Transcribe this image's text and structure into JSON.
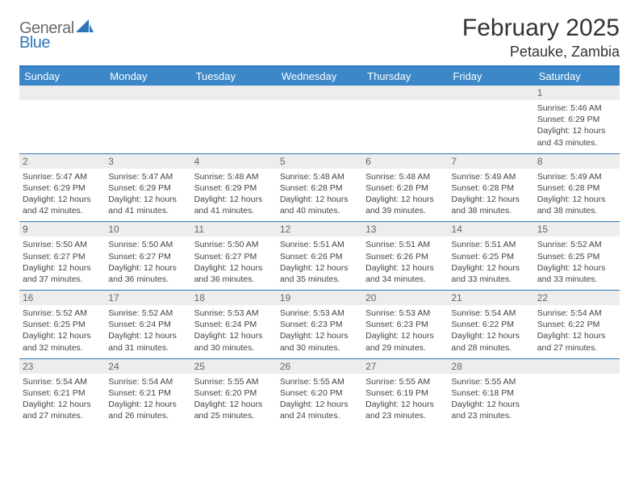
{
  "brand": {
    "a": "General",
    "b": "Blue"
  },
  "title": "February 2025",
  "location": "Petauke, Zambia",
  "colors": {
    "accent": "#2f76b8",
    "header_bg": "#3b87c8",
    "daynum_bg": "#ededed",
    "text_dark": "#333333",
    "text_muted": "#666666",
    "text_body": "#444444"
  },
  "dow": [
    "Sunday",
    "Monday",
    "Tuesday",
    "Wednesday",
    "Thursday",
    "Friday",
    "Saturday"
  ],
  "weeks": [
    [
      {
        "num": "",
        "lines": []
      },
      {
        "num": "",
        "lines": []
      },
      {
        "num": "",
        "lines": []
      },
      {
        "num": "",
        "lines": []
      },
      {
        "num": "",
        "lines": []
      },
      {
        "num": "",
        "lines": []
      },
      {
        "num": "1",
        "lines": [
          "Sunrise: 5:46 AM",
          "Sunset: 6:29 PM",
          "Daylight: 12 hours",
          "and 43 minutes."
        ]
      }
    ],
    [
      {
        "num": "2",
        "lines": [
          "Sunrise: 5:47 AM",
          "Sunset: 6:29 PM",
          "Daylight: 12 hours",
          "and 42 minutes."
        ]
      },
      {
        "num": "3",
        "lines": [
          "Sunrise: 5:47 AM",
          "Sunset: 6:29 PM",
          "Daylight: 12 hours",
          "and 41 minutes."
        ]
      },
      {
        "num": "4",
        "lines": [
          "Sunrise: 5:48 AM",
          "Sunset: 6:29 PM",
          "Daylight: 12 hours",
          "and 41 minutes."
        ]
      },
      {
        "num": "5",
        "lines": [
          "Sunrise: 5:48 AM",
          "Sunset: 6:28 PM",
          "Daylight: 12 hours",
          "and 40 minutes."
        ]
      },
      {
        "num": "6",
        "lines": [
          "Sunrise: 5:48 AM",
          "Sunset: 6:28 PM",
          "Daylight: 12 hours",
          "and 39 minutes."
        ]
      },
      {
        "num": "7",
        "lines": [
          "Sunrise: 5:49 AM",
          "Sunset: 6:28 PM",
          "Daylight: 12 hours",
          "and 38 minutes."
        ]
      },
      {
        "num": "8",
        "lines": [
          "Sunrise: 5:49 AM",
          "Sunset: 6:28 PM",
          "Daylight: 12 hours",
          "and 38 minutes."
        ]
      }
    ],
    [
      {
        "num": "9",
        "lines": [
          "Sunrise: 5:50 AM",
          "Sunset: 6:27 PM",
          "Daylight: 12 hours",
          "and 37 minutes."
        ]
      },
      {
        "num": "10",
        "lines": [
          "Sunrise: 5:50 AM",
          "Sunset: 6:27 PM",
          "Daylight: 12 hours",
          "and 36 minutes."
        ]
      },
      {
        "num": "11",
        "lines": [
          "Sunrise: 5:50 AM",
          "Sunset: 6:27 PM",
          "Daylight: 12 hours",
          "and 36 minutes."
        ]
      },
      {
        "num": "12",
        "lines": [
          "Sunrise: 5:51 AM",
          "Sunset: 6:26 PM",
          "Daylight: 12 hours",
          "and 35 minutes."
        ]
      },
      {
        "num": "13",
        "lines": [
          "Sunrise: 5:51 AM",
          "Sunset: 6:26 PM",
          "Daylight: 12 hours",
          "and 34 minutes."
        ]
      },
      {
        "num": "14",
        "lines": [
          "Sunrise: 5:51 AM",
          "Sunset: 6:25 PM",
          "Daylight: 12 hours",
          "and 33 minutes."
        ]
      },
      {
        "num": "15",
        "lines": [
          "Sunrise: 5:52 AM",
          "Sunset: 6:25 PM",
          "Daylight: 12 hours",
          "and 33 minutes."
        ]
      }
    ],
    [
      {
        "num": "16",
        "lines": [
          "Sunrise: 5:52 AM",
          "Sunset: 6:25 PM",
          "Daylight: 12 hours",
          "and 32 minutes."
        ]
      },
      {
        "num": "17",
        "lines": [
          "Sunrise: 5:52 AM",
          "Sunset: 6:24 PM",
          "Daylight: 12 hours",
          "and 31 minutes."
        ]
      },
      {
        "num": "18",
        "lines": [
          "Sunrise: 5:53 AM",
          "Sunset: 6:24 PM",
          "Daylight: 12 hours",
          "and 30 minutes."
        ]
      },
      {
        "num": "19",
        "lines": [
          "Sunrise: 5:53 AM",
          "Sunset: 6:23 PM",
          "Daylight: 12 hours",
          "and 30 minutes."
        ]
      },
      {
        "num": "20",
        "lines": [
          "Sunrise: 5:53 AM",
          "Sunset: 6:23 PM",
          "Daylight: 12 hours",
          "and 29 minutes."
        ]
      },
      {
        "num": "21",
        "lines": [
          "Sunrise: 5:54 AM",
          "Sunset: 6:22 PM",
          "Daylight: 12 hours",
          "and 28 minutes."
        ]
      },
      {
        "num": "22",
        "lines": [
          "Sunrise: 5:54 AM",
          "Sunset: 6:22 PM",
          "Daylight: 12 hours",
          "and 27 minutes."
        ]
      }
    ],
    [
      {
        "num": "23",
        "lines": [
          "Sunrise: 5:54 AM",
          "Sunset: 6:21 PM",
          "Daylight: 12 hours",
          "and 27 minutes."
        ]
      },
      {
        "num": "24",
        "lines": [
          "Sunrise: 5:54 AM",
          "Sunset: 6:21 PM",
          "Daylight: 12 hours",
          "and 26 minutes."
        ]
      },
      {
        "num": "25",
        "lines": [
          "Sunrise: 5:55 AM",
          "Sunset: 6:20 PM",
          "Daylight: 12 hours",
          "and 25 minutes."
        ]
      },
      {
        "num": "26",
        "lines": [
          "Sunrise: 5:55 AM",
          "Sunset: 6:20 PM",
          "Daylight: 12 hours",
          "and 24 minutes."
        ]
      },
      {
        "num": "27",
        "lines": [
          "Sunrise: 5:55 AM",
          "Sunset: 6:19 PM",
          "Daylight: 12 hours",
          "and 23 minutes."
        ]
      },
      {
        "num": "28",
        "lines": [
          "Sunrise: 5:55 AM",
          "Sunset: 6:18 PM",
          "Daylight: 12 hours",
          "and 23 minutes."
        ]
      },
      {
        "num": "",
        "lines": []
      }
    ]
  ]
}
